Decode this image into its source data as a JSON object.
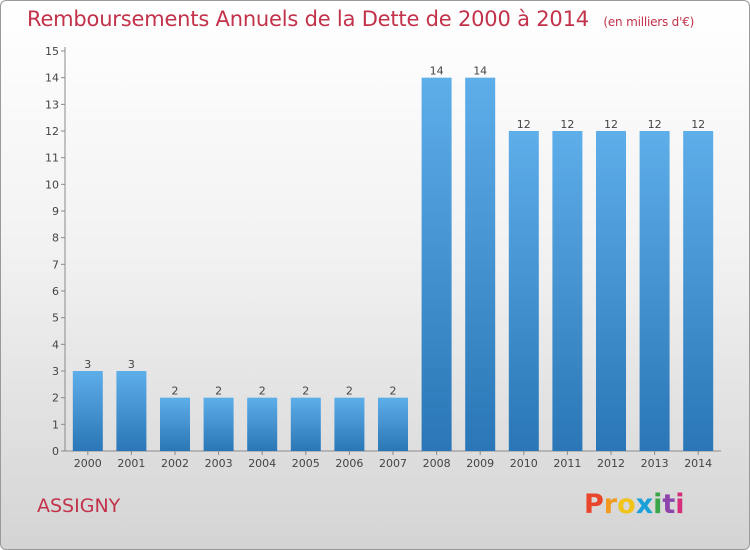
{
  "chart_data": {
    "type": "bar",
    "title": "Remboursements Annuels de la Dette de 2000 à 2014",
    "subtitle": "(en milliers d'€)",
    "categories": [
      "2000",
      "2001",
      "2002",
      "2003",
      "2004",
      "2005",
      "2006",
      "2007",
      "2008",
      "2009",
      "2010",
      "2011",
      "2012",
      "2013",
      "2014"
    ],
    "values": [
      3,
      3,
      2,
      2,
      2,
      2,
      2,
      2,
      14,
      14,
      12,
      12,
      12,
      12,
      12
    ],
    "ylim": [
      0,
      15
    ],
    "yticks": [
      "0",
      "1",
      "2",
      "3",
      "4",
      "5",
      "6",
      "7",
      "8",
      "9",
      "10",
      "11",
      "12",
      "13",
      "14",
      "15"
    ],
    "grid": false,
    "bar_color": "#3f8fd2"
  },
  "footer": {
    "commune": "ASSIGNY",
    "logo_letters": [
      "P",
      "r",
      "o",
      "x",
      "i",
      "t",
      "i"
    ],
    "logo_colors": [
      "#e8452b",
      "#f29a1f",
      "#f0c419",
      "#1aa0d8",
      "#3aa648",
      "#8e44ad",
      "#d62e7a"
    ]
  }
}
